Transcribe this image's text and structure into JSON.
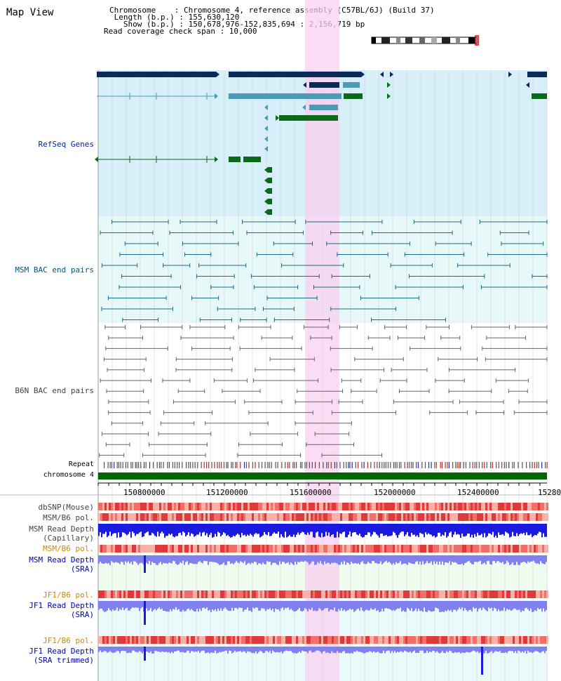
{
  "header": {
    "title": "Map View",
    "chromosome_line": "Chromosome    : Chromosome 4, reference assembly (C57BL/6J) (Build 37)",
    "length_line": " Length (b.p.) : 155,630,120",
    "show_line": "   Show (b.p.) : 150,678,976-152,835,694 : 2,156,719 bp",
    "coverage_line": "Read coverage check span : 10,000"
  },
  "tracks": {
    "refseq": "RefSeq Genes",
    "msm_bac": "MSM BAC end pairs",
    "b6n_bac": "B6N BAC end pairs",
    "repeat": "Repeat",
    "chromosome": "chromosome 4",
    "dbsnp": "dbSNP(Mouse)",
    "msm_b6_pol_1": "MSM/B6 pol.",
    "msm_read_depth_cap_1": "MSM Read Depth",
    "msm_read_depth_cap_2": "(Capillary)",
    "msm_b6_pol_2": "MSM/B6 pol.",
    "msm_read_depth_sra_1": "MSM Read Depth",
    "msm_read_depth_sra_2": "(SRA)",
    "jf1_b6_pol_1": "JF1/B6 pol.",
    "jf1_read_depth_sra_1": "JF1 Read Depth",
    "jf1_read_depth_sra_2": "(SRA)",
    "jf1_b6_pol_2": "JF1/B6 pol.",
    "jf1_read_depth_trim_1": "JF1 Read Depth",
    "jf1_read_depth_trim_2": "(SRA trimmed)"
  },
  "ruler": {
    "ticks": [
      "150800000",
      "151200000",
      "151600000",
      "152000000",
      "152400000",
      "15280"
    ]
  },
  "colors": {
    "refseq_bg": "#d8effa",
    "msm_bac_bg": "#e6f8f8",
    "highlight": "#f8d0f0",
    "chromosome_bar": "#006600",
    "navy_gene": "#0a2a5a",
    "mid_gene": "#4a9aba",
    "green_gene": "#0a6a1a",
    "depth_blue": "#1a1ae0",
    "depth_light": "#8080ee",
    "pol_red": "#ee4444"
  }
}
